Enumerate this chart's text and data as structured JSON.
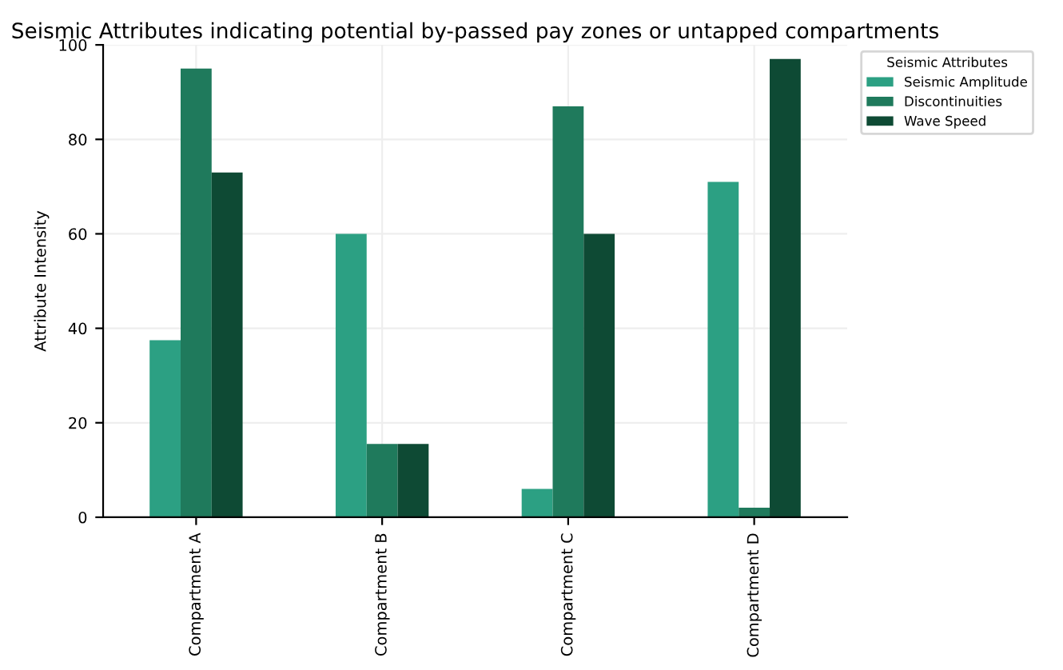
{
  "chart_data": {
    "type": "bar",
    "title": "Seismic Attributes indicating potential by-passed pay zones or untapped compartments",
    "ylabel": "Attribute Intensity",
    "legend_title": "Seismic Attributes",
    "categories": [
      "Compartment A",
      "Compartment B",
      "Compartment C",
      "Compartment D"
    ],
    "series": [
      {
        "name": "Seismic Amplitude",
        "color": "#2ca083",
        "values": [
          37.5,
          60,
          6,
          71
        ]
      },
      {
        "name": "Discontinuities",
        "color": "#1f7a5c",
        "values": [
          95,
          15.5,
          87,
          2
        ]
      },
      {
        "name": "Wave Speed",
        "color": "#0e4a34",
        "values": [
          73,
          15.5,
          60,
          97
        ]
      }
    ],
    "ylim": [
      0,
      100
    ],
    "yticks": [
      0,
      20,
      40,
      60,
      80,
      100
    ],
    "grid": true,
    "legend": "top right"
  }
}
